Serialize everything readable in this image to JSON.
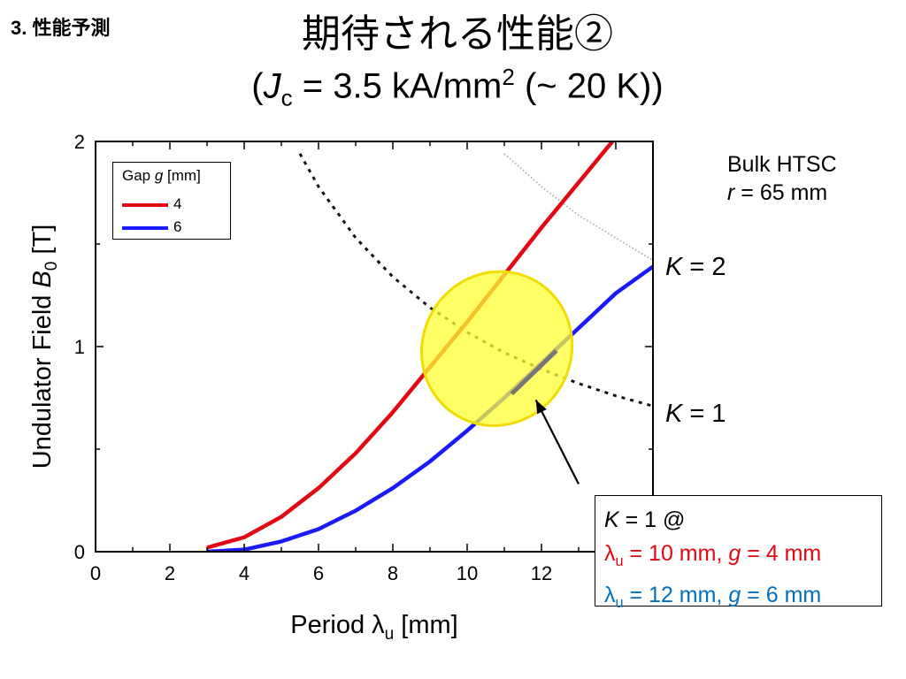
{
  "header": {
    "section": "3. 性能予測",
    "title": "期待される性能②",
    "subtitle_prefix": "(",
    "subtitle_var": "J",
    "subtitle_sub": "c",
    "subtitle_value": " = 3.5 kA/mm",
    "subtitle_sup": "2",
    "subtitle_suffix": " (~ 20 K))"
  },
  "note": {
    "line1": "Bulk HTSC",
    "line2_var": "r",
    "line2_rest": " = 65 mm"
  },
  "k_labels": {
    "k2_var": "K",
    "k2_rest": " = 2",
    "k1_var": "K",
    "k1_rest": " = 1"
  },
  "callout": {
    "line1_var": "K",
    "line1_rest": " = 1 @",
    "line2_symbol": "λ",
    "line2_sub": "u",
    "line2_a": " = 10 mm, ",
    "line2_var": "g",
    "line2_b": " = 4 mm",
    "line3_symbol": "λ",
    "line3_sub": "u",
    "line3_a": " = 12 mm, ",
    "line3_var": "g",
    "line3_b": " = 6 mm"
  },
  "colors": {
    "red": "#e30613",
    "blue": "#1a1aff",
    "callout_red": "#e30613",
    "callout_blue": "#0070c0",
    "highlight": "#ffff33"
  },
  "chart_data": {
    "type": "line",
    "xlabel_prefix": "Period ",
    "xlabel_symbol": "λ",
    "xlabel_sub": "u",
    "xlabel_suffix": " [mm]",
    "ylabel_prefix": "Undulator Field ",
    "ylabel_var": "B",
    "ylabel_sub": "0",
    "ylabel_suffix": " [T]",
    "xlim": [
      0,
      15
    ],
    "ylim": [
      0,
      2
    ],
    "xticks": [
      "0",
      "2",
      "4",
      "6",
      "8",
      "10",
      "12"
    ],
    "yticks": [
      "0",
      "1",
      "2"
    ],
    "legend": {
      "title_prefix": "Gap ",
      "title_var": "g",
      "title_suffix": " [mm]",
      "position": "top-left"
    },
    "series": [
      {
        "name": "4",
        "color": "#e30613",
        "x": [
          3,
          4,
          5,
          6,
          7,
          8,
          9,
          10,
          11,
          12,
          13,
          14
        ],
        "y": [
          0.02,
          0.07,
          0.17,
          0.31,
          0.48,
          0.68,
          0.9,
          1.12,
          1.35,
          1.58,
          1.8,
          2.02
        ]
      },
      {
        "name": "6",
        "color": "#1a1aff",
        "x": [
          3,
          4,
          5,
          6,
          7,
          8,
          9,
          10,
          11,
          12,
          13,
          14,
          15
        ],
        "y": [
          0.0,
          0.01,
          0.05,
          0.11,
          0.2,
          0.31,
          0.44,
          0.59,
          0.75,
          0.92,
          1.09,
          1.26,
          1.39
        ]
      }
    ],
    "k_curves": [
      {
        "k": 2,
        "x": [
          11,
          12,
          13,
          14,
          15
        ],
        "y": [
          1.94,
          1.78,
          1.64,
          1.53,
          1.42
        ]
      },
      {
        "k": 1,
        "x": [
          5.5,
          6,
          7,
          8,
          9,
          10,
          11,
          12,
          13,
          14,
          15
        ],
        "y": [
          1.94,
          1.78,
          1.53,
          1.34,
          1.19,
          1.07,
          0.97,
          0.89,
          0.82,
          0.76,
          0.71
        ]
      }
    ],
    "highlight_segment": {
      "x": [
        11.2,
        12.4
      ],
      "y": [
        0.77,
        0.98
      ]
    },
    "highlight_ellipse": {
      "cx": 10.8,
      "cy": 0.99,
      "rx": 2.0,
      "ry": 0.38,
      "rotation_deg": 30
    },
    "arrow": {
      "from": [
        13,
        0.33
      ],
      "to": [
        11.85,
        0.74
      ]
    }
  }
}
